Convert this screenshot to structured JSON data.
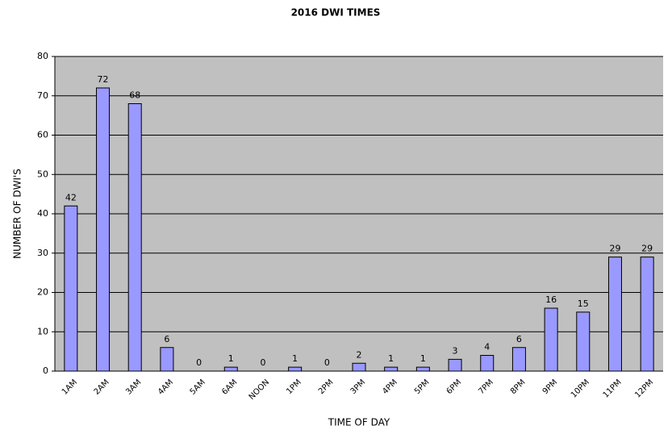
{
  "chart_data": {
    "type": "bar",
    "title": "2016 DWI TIMES",
    "x_label": "TIME OF DAY",
    "y_label": "NUMBER OF DWI'S",
    "categories": [
      "1AM",
      "2AM",
      "3AM",
      "4AM",
      "5AM",
      "6AM",
      "NOON",
      "1PM",
      "2PM",
      "3PM",
      "4PM",
      "5PM",
      "6PM",
      "7PM",
      "8PM",
      "9PM",
      "10PM",
      "11PM",
      "12PM"
    ],
    "values": [
      42,
      72,
      68,
      6,
      0,
      1,
      0,
      1,
      0,
      2,
      1,
      1,
      3,
      4,
      6,
      16,
      15,
      29,
      29
    ],
    "color": "#9999ff",
    "ylim": [
      0,
      80
    ],
    "yticks": [
      0,
      10,
      20,
      30,
      40,
      50,
      60,
      70,
      80
    ],
    "grid": true
  }
}
